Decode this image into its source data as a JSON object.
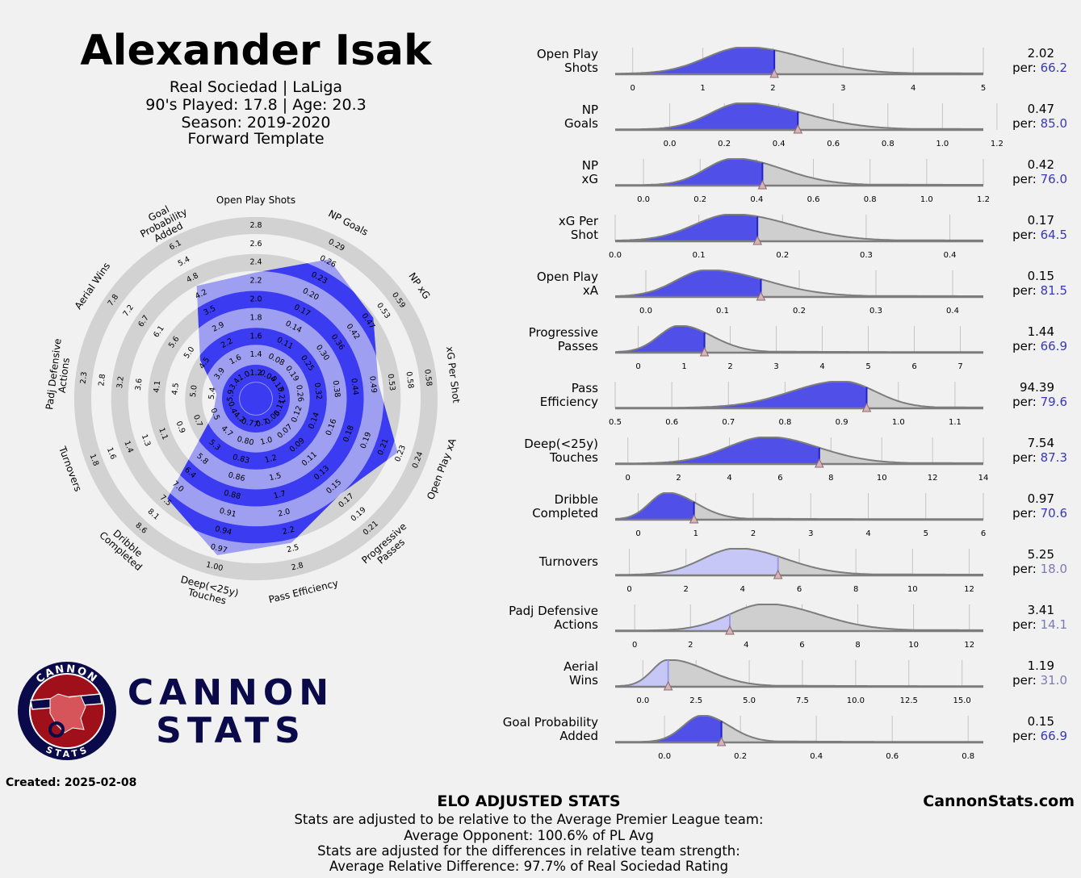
{
  "header": {
    "player_name": "Alexander Isak",
    "team_line": "Real Sociedad | LaLiga",
    "played_line": "90's Played: 17.8 | Age: 20.3",
    "season_line": "Season: 2019-2020",
    "template_line": "Forward Template"
  },
  "brand": {
    "line1": "CANNON",
    "line2": "STATS",
    "badge_top": "CANNON",
    "badge_bottom": "STATS"
  },
  "created": "Created: 2025-02-08",
  "footer": {
    "title": "ELO ADJUSTED STATS",
    "lines": [
      "Stats are adjusted to be relative to the Average Premier League team:",
      "Average Opponent: 100.6% of PL Avg",
      "Stats are adjusted for the differences in relative team strength:",
      "Average Relative Difference: 97.7% of Real Sociedad Rating"
    ],
    "site": "CannonStats.com"
  },
  "colors": {
    "background": "#f1f1f1",
    "radar_fill": "#3b3bf2",
    "ring_gray": "#d2d2d2",
    "dist_gray": "#cfcfcf",
    "dist_line": "#7d7d7d",
    "high_fill": "#3333ee",
    "low_fill": "#c7c7f7",
    "pct_high": "#3838b8",
    "pct_low": "#7a7ab5",
    "brand_navy": "#0a0a4a",
    "badge_red": "#a0101a"
  },
  "chart_data": [
    {
      "type": "radar",
      "name": "radar",
      "categories": [
        "Open Play Shots",
        "NP Goals",
        "NP xG",
        "xG Per Shot",
        "Open Play xA",
        "Progressive Passes",
        "Pass Efficiency",
        "Deep(<25y) Touches",
        "Dribble Completed",
        "Turnovers",
        "Padj Defensive Actions",
        "Aerial Wins",
        "Goal Probability Added"
      ],
      "percentiles": [
        66.2,
        85.0,
        76.0,
        64.5,
        81.5,
        66.9,
        79.6,
        87.3,
        70.6,
        18.0,
        14.1,
        31.0,
        66.9
      ],
      "tick_labels": [
        [
          "1.2",
          "1.4",
          "1.6",
          "1.8",
          "2.0",
          "2.2",
          "2.4",
          "2.6",
          "2.8"
        ],
        [
          "0.04",
          "0.08",
          "0.11",
          "0.14",
          "0.17",
          "0.20",
          "0.23",
          "0.26",
          "0.29"
        ],
        [
          "0.13",
          "0.19",
          "0.25",
          "0.30",
          "0.36",
          "0.42",
          "0.47",
          "0.53",
          "0.59"
        ],
        [
          "0.21",
          "0.26",
          "0.32",
          "0.38",
          "0.44",
          "0.49",
          "0.53",
          "0.58",
          "0.58"
        ],
        [
          "0.11",
          "0.12",
          "0.14",
          "0.16",
          "0.18",
          "0.19",
          "0.21",
          "0.23",
          "0.24"
        ],
        [
          "0.05",
          "0.07",
          "0.09",
          "0.11",
          "0.13",
          "0.15",
          "0.17",
          "0.19",
          "0.21"
        ],
        [
          "0.7",
          "1.0",
          "1.2",
          "1.5",
          "1.7",
          "2.0",
          "2.2",
          "2.5",
          "2.8"
        ],
        [
          "0.77",
          "0.80",
          "0.83",
          "0.86",
          "0.88",
          "0.91",
          "0.94",
          "0.97",
          "1.00"
        ],
        [
          "4.2",
          "4.7",
          "5.3",
          "5.8",
          "6.4",
          "7.0",
          "7.5",
          "8.1",
          "8.6"
        ],
        [
          "0.4",
          "0.5",
          "0.7",
          "0.9",
          "1.1",
          "1.3",
          "1.4",
          "1.6",
          "1.8"
        ],
        [
          "5.9",
          "5.4",
          "5.0",
          "4.5",
          "4.1",
          "3.6",
          "3.2",
          "2.8",
          "2.3"
        ],
        [
          "3.4",
          "3.9",
          "4.5",
          "5.0",
          "5.6",
          "6.1",
          "6.7",
          "7.2",
          "7.8"
        ],
        [
          "1.0",
          "1.6",
          "2.2",
          "2.9",
          "3.5",
          "4.2",
          "4.8",
          "5.4",
          "6.1"
        ]
      ]
    },
    {
      "type": "area",
      "name": "distributions",
      "series": [
        {
          "name": "Open Play Shots",
          "value": "2.02",
          "percentile": "66.2",
          "player_x": 2.02,
          "x_ticks": [
            0,
            1,
            2,
            3,
            4,
            5
          ],
          "x_tick_labels": [
            "0",
            "1",
            "2",
            "3",
            "4",
            "5"
          ],
          "xlim": [
            -0.25,
            5.0
          ],
          "peak_x": 1.6,
          "spread_left": 0.55,
          "spread_right": 0.85,
          "high": true
        },
        {
          "name": "NP Goals",
          "value": "0.47",
          "percentile": "85.0",
          "player_x": 0.47,
          "x_ticks": [
            0.0,
            0.2,
            0.4,
            0.6,
            0.8,
            1.0,
            1.2
          ],
          "x_tick_labels": [
            "0.0",
            "0.2",
            "0.4",
            "0.6",
            "0.8",
            "1.0",
            "1.2"
          ],
          "xlim": [
            -0.2,
            1.15
          ],
          "peak_x": 0.27,
          "spread_left": 0.12,
          "spread_right": 0.22,
          "high": true
        },
        {
          "name": "NP xG",
          "value": "0.42",
          "percentile": "76.0",
          "player_x": 0.42,
          "x_ticks": [
            0.0,
            0.2,
            0.4,
            0.6,
            0.8,
            1.0,
            1.2
          ],
          "x_tick_labels": [
            "0.0",
            "0.2",
            "0.4",
            "0.6",
            "0.8",
            "1.0",
            "1.2"
          ],
          "xlim": [
            -0.1,
            1.2
          ],
          "peak_x": 0.32,
          "spread_left": 0.1,
          "spread_right": 0.17,
          "high": true
        },
        {
          "name": "xG Per Shot",
          "value": "0.17",
          "percentile": "64.5",
          "player_x": 0.17,
          "x_ticks": [
            0.0,
            0.1,
            0.2,
            0.3,
            0.4
          ],
          "x_tick_labels": [
            "0.0",
            "0.1",
            "0.2",
            "0.3",
            "0.4"
          ],
          "xlim": [
            0.0,
            0.44
          ],
          "peak_x": 0.14,
          "spread_left": 0.045,
          "spread_right": 0.07,
          "high": true
        },
        {
          "name": "Open Play xA",
          "value": "0.15",
          "percentile": "81.5",
          "player_x": 0.15,
          "x_ticks": [
            0.0,
            0.1,
            0.2,
            0.3,
            0.4
          ],
          "x_tick_labels": [
            "0.0",
            "0.1",
            "0.2",
            "0.3",
            "0.4"
          ],
          "xlim": [
            -0.04,
            0.44
          ],
          "peak_x": 0.08,
          "spread_left": 0.04,
          "spread_right": 0.075,
          "high": true
        },
        {
          "name": "Progressive Passes",
          "value": "1.44",
          "percentile": "66.9",
          "player_x": 1.44,
          "x_ticks": [
            0,
            1,
            2,
            3,
            4,
            5,
            6,
            7
          ],
          "x_tick_labels": [
            "0",
            "1",
            "2",
            "3",
            "4",
            "5",
            "6",
            "7"
          ],
          "xlim": [
            -0.5,
            7.5
          ],
          "peak_x": 0.9,
          "spread_left": 0.45,
          "spread_right": 0.7,
          "high": true
        },
        {
          "name": "Pass Efficiency",
          "value": "94.39",
          "percentile": "79.6",
          "player_x": 0.944,
          "x_ticks": [
            0.5,
            0.6,
            0.7,
            0.8,
            0.9,
            1.0,
            1.1
          ],
          "x_tick_labels": [
            "0.5",
            "0.6",
            "0.7",
            "0.8",
            "0.9",
            "1.0",
            "1.1"
          ],
          "xlim": [
            0.5,
            1.15
          ],
          "peak_x": 0.9,
          "spread_left": 0.09,
          "spread_right": 0.06,
          "high": true
        },
        {
          "name": "Deep(<25y) Touches",
          "value": "7.54",
          "percentile": "87.3",
          "player_x": 7.54,
          "x_ticks": [
            0,
            2,
            4,
            6,
            8,
            10,
            12,
            14
          ],
          "x_tick_labels": [
            "0",
            "2",
            "4",
            "6",
            "8",
            "10",
            "12",
            "14"
          ],
          "xlim": [
            -0.5,
            14
          ],
          "peak_x": 5.5,
          "spread_left": 1.6,
          "spread_right": 2.0,
          "high": true
        },
        {
          "name": "Dribble Completed",
          "value": "0.97",
          "percentile": "70.6",
          "player_x": 0.97,
          "x_ticks": [
            0,
            1,
            2,
            3,
            4,
            5,
            6
          ],
          "x_tick_labels": [
            "0",
            "1",
            "2",
            "3",
            "4",
            "5",
            "6"
          ],
          "xlim": [
            -0.4,
            6.0
          ],
          "peak_x": 0.5,
          "spread_left": 0.3,
          "spread_right": 0.5,
          "high": true
        },
        {
          "name": "Turnovers",
          "value": "5.25",
          "percentile": "18.0",
          "player_x": 5.25,
          "x_ticks": [
            0,
            2,
            4,
            6,
            8,
            10,
            12
          ],
          "x_tick_labels": [
            "0",
            "2",
            "4",
            "6",
            "8",
            "10",
            "12"
          ],
          "xlim": [
            -0.5,
            12.5
          ],
          "peak_x": 3.8,
          "spread_left": 1.2,
          "spread_right": 1.7,
          "high": false
        },
        {
          "name": "Padj Defensive Actions",
          "value": "3.41",
          "percentile": "14.1",
          "player_x": 3.41,
          "x_ticks": [
            0,
            2,
            4,
            6,
            8,
            10,
            12
          ],
          "x_tick_labels": [
            "0",
            "2",
            "4",
            "6",
            "8",
            "10",
            "12"
          ],
          "xlim": [
            -0.7,
            12.5
          ],
          "peak_x": 4.7,
          "spread_left": 1.3,
          "spread_right": 1.9,
          "high": false
        },
        {
          "name": "Aerial Wins",
          "value": "1.19",
          "percentile": "31.0",
          "player_x": 1.19,
          "x_ticks": [
            0.0,
            2.5,
            5.0,
            7.5,
            10.0,
            12.5,
            15.0
          ],
          "x_tick_labels": [
            "0.0",
            "2.5",
            "5.0",
            "7.5",
            "10.0",
            "12.5",
            "15.0"
          ],
          "xlim": [
            -1.3,
            16
          ],
          "peak_x": 1.2,
          "spread_left": 0.75,
          "spread_right": 1.8,
          "high": false
        },
        {
          "name": "Goal Probability Added",
          "value": "0.15",
          "percentile": "66.9",
          "player_x": 0.15,
          "x_ticks": [
            0.0,
            0.2,
            0.4,
            0.6,
            0.8
          ],
          "x_tick_labels": [
            "0.0",
            "0.2",
            "0.4",
            "0.6",
            "0.8"
          ],
          "xlim": [
            -0.13,
            0.84
          ],
          "peak_x": 0.1,
          "spread_left": 0.05,
          "spread_right": 0.07,
          "high": true
        }
      ],
      "per_label": "per:"
    }
  ]
}
